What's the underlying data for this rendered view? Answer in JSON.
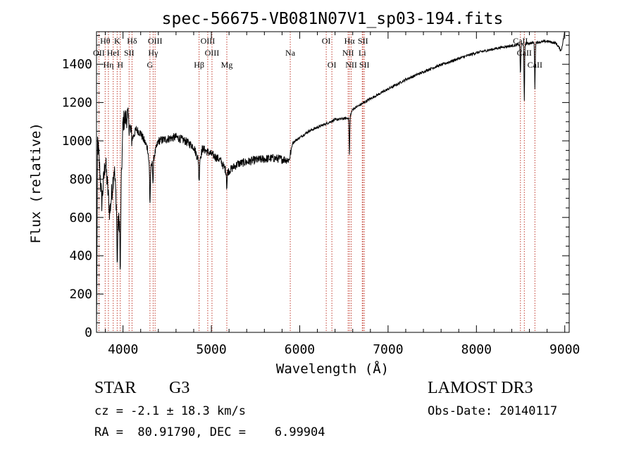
{
  "chart_data": {
    "type": "line",
    "title": "spec-56675-VB081N07V1_sp03-194.fits",
    "xlabel": "Wavelength (Å)",
    "ylabel": "Flux (relative)",
    "xlim": [
      3700,
      9050
    ],
    "ylim": [
      0,
      1570
    ],
    "xticks": [
      4000,
      5000,
      6000,
      7000,
      8000,
      9000
    ],
    "yticks": [
      0,
      200,
      400,
      600,
      800,
      1000,
      1200,
      1400
    ],
    "xtick_labels": [
      "4000",
      "5000",
      "6000",
      "7000",
      "8000",
      "9000"
    ],
    "ytick_labels": [
      "0",
      "200",
      "400",
      "600",
      "800",
      "1000",
      "1200",
      "1400"
    ],
    "lines": [
      {
        "label": "Hθ",
        "wl": 3798,
        "row": 0
      },
      {
        "label": "OII",
        "wl": 3727,
        "row": 1
      },
      {
        "label": "Hη",
        "wl": 3835,
        "row": 2
      },
      {
        "label": "K",
        "wl": 3934,
        "row": 0
      },
      {
        "label": "HeI",
        "wl": 3889,
        "row": 1
      },
      {
        "label": "H",
        "wl": 3969,
        "row": 2
      },
      {
        "label": "Hδ",
        "wl": 4102,
        "row": 0
      },
      {
        "label": "SII",
        "wl": 4069,
        "row": 1
      },
      {
        "label": "OIII",
        "wl": 4363,
        "row": 0
      },
      {
        "label": "Hγ",
        "wl": 4341,
        "row": 1
      },
      {
        "label": "G",
        "wl": 4305,
        "row": 2
      },
      {
        "label": "OIII",
        "wl": 4959,
        "row": 0
      },
      {
        "label": "OIII",
        "wl": 5007,
        "row": 1
      },
      {
        "label": "Hβ",
        "wl": 4861,
        "row": 2
      },
      {
        "label": "Mg",
        "wl": 5175,
        "row": 2
      },
      {
        "label": "Na",
        "wl": 5893,
        "row": 1
      },
      {
        "label": "OI",
        "wl": 6300,
        "row": 0
      },
      {
        "label": "OI",
        "wl": 6364,
        "row": 2
      },
      {
        "label": "Hα",
        "wl": 6563,
        "row": 0
      },
      {
        "label": "NII",
        "wl": 6548,
        "row": 1
      },
      {
        "label": "NII",
        "wl": 6583,
        "row": 2
      },
      {
        "label": "SII",
        "wl": 6716,
        "row": 0
      },
      {
        "label": "Li",
        "wl": 6708,
        "row": 1
      },
      {
        "label": "SII",
        "wl": 6731,
        "row": 2
      },
      {
        "label": "CaII",
        "wl": 8498,
        "row": 0
      },
      {
        "label": "CaII",
        "wl": 8542,
        "row": 1
      },
      {
        "label": "CaII",
        "wl": 8662,
        "row": 2
      }
    ],
    "spectrum_anchors": [
      [
        3700,
        0
      ],
      [
        3712,
        1000
      ],
      [
        3730,
        900
      ],
      [
        3760,
        680
      ],
      [
        3800,
        900
      ],
      [
        3850,
        620
      ],
      [
        3900,
        860
      ],
      [
        3940,
        560
      ],
      [
        3970,
        600
      ],
      [
        4000,
        1100
      ],
      [
        4050,
        1130
      ],
      [
        4102,
        1010
      ],
      [
        4150,
        1060
      ],
      [
        4200,
        1040
      ],
      [
        4280,
        960
      ],
      [
        4305,
        830
      ],
      [
        4340,
        900
      ],
      [
        4400,
        1000
      ],
      [
        4500,
        1010
      ],
      [
        4600,
        1020
      ],
      [
        4700,
        1000
      ],
      [
        4800,
        970
      ],
      [
        4861,
        890
      ],
      [
        4900,
        960
      ],
      [
        5000,
        930
      ],
      [
        5100,
        900
      ],
      [
        5175,
        835
      ],
      [
        5300,
        880
      ],
      [
        5500,
        900
      ],
      [
        5700,
        910
      ],
      [
        5880,
        900
      ],
      [
        5920,
        990
      ],
      [
        6100,
        1050
      ],
      [
        6400,
        1110
      ],
      [
        6563,
        1120
      ],
      [
        6600,
        1165
      ],
      [
        6800,
        1220
      ],
      [
        7000,
        1270
      ],
      [
        7200,
        1320
      ],
      [
        7500,
        1380
      ],
      [
        7800,
        1430
      ],
      [
        8000,
        1460
      ],
      [
        8300,
        1490
      ],
      [
        8450,
        1500
      ],
      [
        8600,
        1510
      ],
      [
        8800,
        1520
      ],
      [
        8900,
        1510
      ],
      [
        8960,
        1470
      ],
      [
        9000,
        1570
      ]
    ],
    "absorption_dips": [
      {
        "wl": 3934,
        "depth": 260
      },
      {
        "wl": 3969,
        "depth": 300
      },
      {
        "wl": 4305,
        "depth": 160
      },
      {
        "wl": 4340,
        "depth": 120
      },
      {
        "wl": 4861,
        "depth": 110
      },
      {
        "wl": 5175,
        "depth": 80
      },
      {
        "wl": 6563,
        "depth": 200
      },
      {
        "wl": 8498,
        "depth": 160
      },
      {
        "wl": 8542,
        "depth": 300
      },
      {
        "wl": 8662,
        "depth": 240
      }
    ]
  },
  "info": {
    "object_class": "STAR",
    "subclass": "G3",
    "survey": "LAMOST DR3",
    "redshift": "cz = -2.1 ± 18.3 km/s",
    "obs_date": "Obs-Date: 20140117",
    "coords": "RA =  80.91790, DEC =    6.99904"
  },
  "colors": {
    "axis": "#000000",
    "spectrum": "#000000",
    "line_marker": "#c0392b"
  }
}
